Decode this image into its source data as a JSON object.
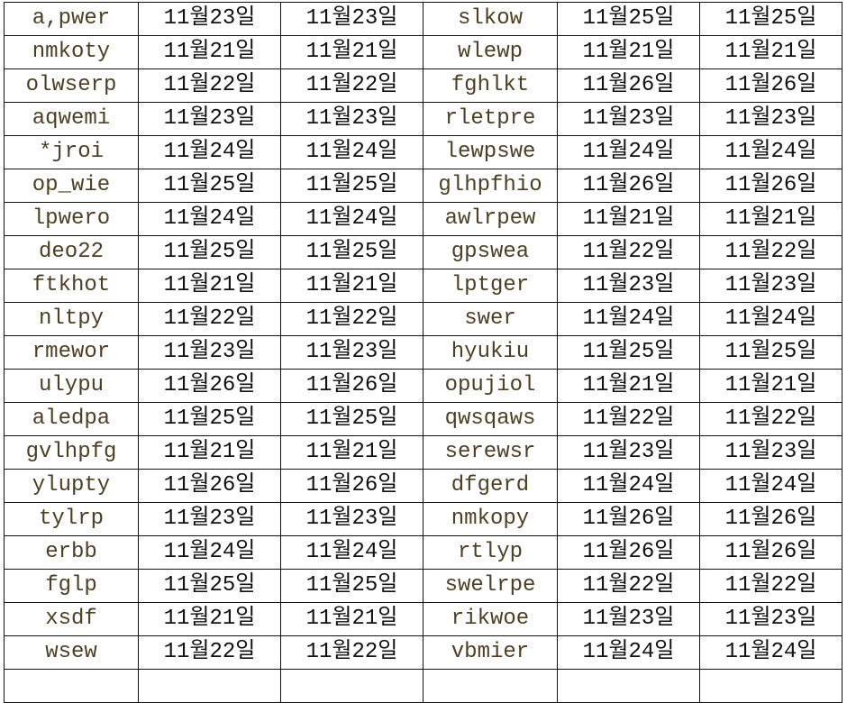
{
  "rows": [
    [
      "a,pwer",
      "11월23일",
      "11월23일",
      "slkow",
      "11월25일",
      "11월25일"
    ],
    [
      "nmkoty",
      "11월21일",
      "11월21일",
      "wlewp",
      "11월21일",
      "11월21일"
    ],
    [
      "olwserp",
      "11월22일",
      "11월22일",
      "fghlkt",
      "11월26일",
      "11월26일"
    ],
    [
      "aqwemi",
      "11월23일",
      "11월23일",
      "rletpre",
      "11월23일",
      "11월23일"
    ],
    [
      "*jroi",
      "11월24일",
      "11월24일",
      "lewpswe",
      "11월24일",
      "11월24일"
    ],
    [
      "op_wie",
      "11월25일",
      "11월25일",
      "glhpfhio",
      "11월26일",
      "11월26일"
    ],
    [
      "lpwero",
      "11월24일",
      "11월24일",
      "awlrpew",
      "11월21일",
      "11월21일"
    ],
    [
      "deo22",
      "11월25일",
      "11월25일",
      "gpswea",
      "11월22일",
      "11월22일"
    ],
    [
      "ftkhot",
      "11월21일",
      "11월21일",
      "lptger",
      "11월23일",
      "11월23일"
    ],
    [
      "nltpy",
      "11월22일",
      "11월22일",
      "swer",
      "11월24일",
      "11월24일"
    ],
    [
      "rmewor",
      "11월23일",
      "11월23일",
      "hyukiu",
      "11월25일",
      "11월25일"
    ],
    [
      "ulypu",
      "11월26일",
      "11월26일",
      "opujiol",
      "11월21일",
      "11월21일"
    ],
    [
      "aledpa",
      "11월25일",
      "11월25일",
      "qwsqaws",
      "11월22일",
      "11월22일"
    ],
    [
      "gvlhpfg",
      "11월21일",
      "11월21일",
      "serewsr",
      "11월23일",
      "11월23일"
    ],
    [
      "ylupty",
      "11월26일",
      "11월26일",
      "dfgerd",
      "11월24일",
      "11월24일"
    ],
    [
      "tylrp",
      "11월23일",
      "11월23일",
      "nmkopy",
      "11월26일",
      "11월26일"
    ],
    [
      "erbb",
      "11월24일",
      "11월24일",
      "rtlyp",
      "11월26일",
      "11월26일"
    ],
    [
      "fglp",
      "11월25일",
      "11월25일",
      "swelrpe",
      "11월22일",
      "11월22일"
    ],
    [
      "xsdf",
      "11월21일",
      "11월21일",
      "rikwoe",
      "11월23일",
      "11월23일"
    ],
    [
      "wsew",
      "11월22일",
      "11월22일",
      "vbmier",
      "11월24일",
      "11월24일"
    ],
    [
      "",
      "",
      "",
      "",
      "",
      ""
    ]
  ],
  "colors": {
    "name_text": "#4e3f22",
    "date_text": "#111111",
    "grid": "#111111"
  }
}
